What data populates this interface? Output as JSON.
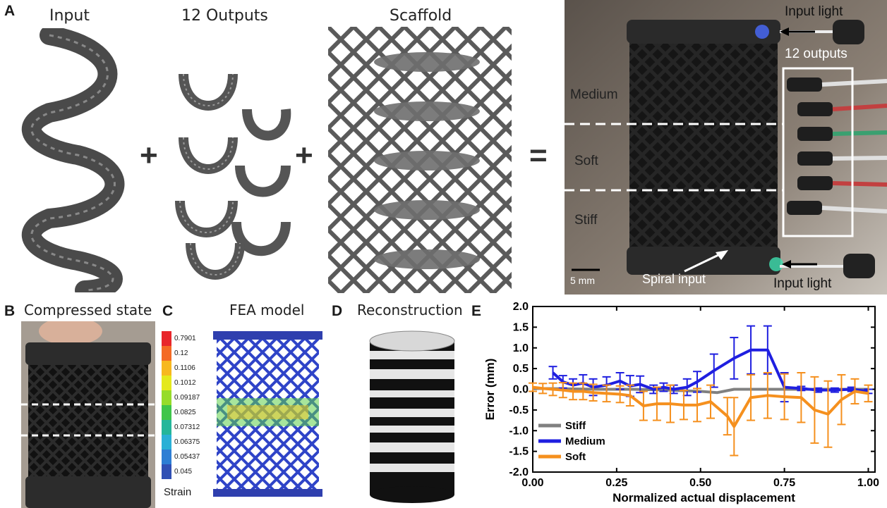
{
  "panels": {
    "a": {
      "letter": "A",
      "input_title": "Input",
      "outputs_title": "12 Outputs",
      "scaffold_title": "Scaffold",
      "plus_1": "+",
      "plus_2": "+",
      "equals": "=",
      "photo": {
        "input_light_top": "Input light",
        "outputs": "12 outputs",
        "medium": "Medium",
        "soft": "Soft",
        "stiff": "Stiff",
        "scale": "5 mm",
        "spiral_input": "Spiral input",
        "input_light_bottom": "Input light"
      }
    },
    "b": {
      "letter": "B",
      "title": "Compressed state"
    },
    "c": {
      "letter": "C",
      "title": "FEA model",
      "legend_values": [
        "0.7901",
        "0.12",
        "0.1106",
        "0.1012",
        "0.09187",
        "0.0825",
        "0.07312",
        "0.06375",
        "0.05437",
        "0.045"
      ],
      "legend_colors": [
        "#e8262b",
        "#f46a24",
        "#f7b81f",
        "#e4e91c",
        "#96dc2a",
        "#3fc54a",
        "#24b69a",
        "#2ab0d6",
        "#2d7ed4",
        "#3050b4"
      ],
      "legend_label": "Strain"
    },
    "d": {
      "letter": "D",
      "title": "Reconstruction"
    },
    "e": {
      "letter": "E"
    }
  },
  "chart_data": {
    "type": "line",
    "xlabel": "Normalized actual displacement",
    "ylabel": "Error (mm)",
    "xlim": [
      0,
      1.02
    ],
    "ylim": [
      -2.0,
      2.0
    ],
    "xticks": [
      0.0,
      0.25,
      0.5,
      0.75,
      1.0
    ],
    "xtick_labels": [
      "0.00",
      "0.25",
      "0.50",
      "0.75",
      "1.00"
    ],
    "yticks": [
      2.0,
      1.5,
      1.0,
      0.5,
      0.0,
      -0.5,
      -1.0,
      -1.5,
      -2.0
    ],
    "ytick_labels": [
      "2.0",
      "1.5",
      "1.0",
      "0.5",
      "0.0",
      "-0.5",
      "-1.0",
      "-1.5",
      "-2.0"
    ],
    "legend_position": "bottom-left",
    "series": [
      {
        "name": "Stiff",
        "color": "#808080",
        "x": [
          0.0,
          0.1,
          0.2,
          0.3,
          0.4,
          0.5,
          0.55,
          0.6,
          0.7,
          0.8,
          0.9,
          1.0
        ],
        "y": [
          0.02,
          0.01,
          0.0,
          0.0,
          -0.02,
          -0.05,
          -0.08,
          0.0,
          0.0,
          0.0,
          0.0,
          0.0
        ]
      },
      {
        "name": "Medium",
        "color": "#1f1fe0",
        "x": [
          0.06,
          0.09,
          0.12,
          0.15,
          0.18,
          0.22,
          0.26,
          0.29,
          0.32,
          0.36,
          0.39,
          0.42,
          0.46,
          0.49,
          0.54,
          0.6,
          0.65,
          0.7,
          0.75,
          0.8,
          0.85,
          0.9,
          0.95,
          1.0
        ],
        "y": [
          0.4,
          0.18,
          0.1,
          0.15,
          0.05,
          0.1,
          0.2,
          0.08,
          0.12,
          0.0,
          0.05,
          0.0,
          0.05,
          0.18,
          0.45,
          0.75,
          0.95,
          0.95,
          0.05,
          0.02,
          -0.02,
          -0.02,
          0.0,
          -0.05
        ],
        "err": [
          0.15,
          0.15,
          0.15,
          0.2,
          0.2,
          0.2,
          0.2,
          0.25,
          0.2,
          0.1,
          0.1,
          0.1,
          0.2,
          0.25,
          0.4,
          0.5,
          0.58,
          0.58,
          0.35,
          0.05,
          0.05,
          0.05,
          0.05,
          0.05
        ]
      },
      {
        "name": "Soft",
        "color": "#f5901e",
        "x": [
          0.0,
          0.03,
          0.06,
          0.09,
          0.12,
          0.15,
          0.18,
          0.22,
          0.26,
          0.29,
          0.33,
          0.37,
          0.41,
          0.45,
          0.49,
          0.53,
          0.58,
          0.6,
          0.65,
          0.7,
          0.75,
          0.8,
          0.84,
          0.88,
          0.92,
          0.96,
          1.0
        ],
        "y": [
          0.05,
          0.02,
          0.0,
          -0.02,
          -0.05,
          -0.05,
          -0.08,
          -0.1,
          -0.12,
          -0.15,
          -0.4,
          -0.35,
          -0.35,
          -0.38,
          -0.38,
          -0.3,
          -0.65,
          -0.9,
          -0.2,
          -0.15,
          -0.18,
          -0.2,
          -0.5,
          -0.6,
          -0.25,
          -0.05,
          -0.1
        ],
        "err": [
          0.1,
          0.12,
          0.15,
          0.18,
          0.2,
          0.2,
          0.2,
          0.2,
          0.2,
          0.25,
          0.35,
          0.4,
          0.45,
          0.35,
          0.4,
          0.4,
          0.45,
          0.7,
          0.55,
          0.55,
          0.55,
          0.6,
          0.8,
          0.8,
          0.6,
          0.3,
          0.2
        ]
      }
    ]
  }
}
